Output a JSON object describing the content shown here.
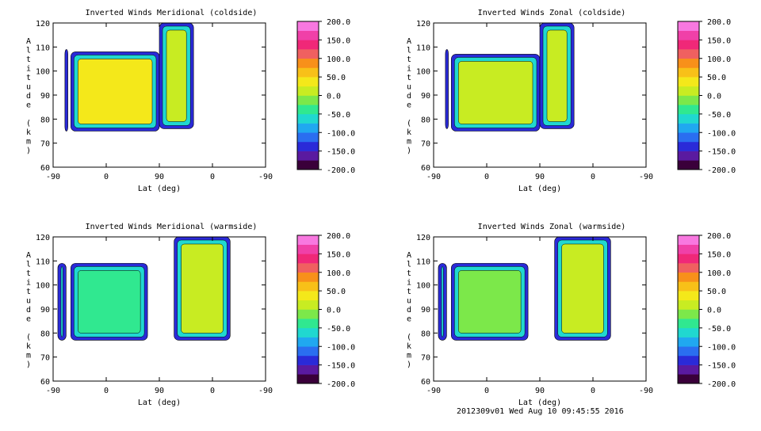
{
  "colors": {
    "colorbar": [
      "#3a003a",
      "#5a1aa0",
      "#2a2ad8",
      "#2a6ef0",
      "#20a8f0",
      "#20d8d0",
      "#30e890",
      "#7ce84a",
      "#c8ec22",
      "#f4e81a",
      "#f8c018",
      "#f8901a",
      "#f06060",
      "#f02878",
      "#f040a8",
      "#f878e0"
    ]
  },
  "footer": "2012309v01 Wed Aug 10 09:45:55 2016",
  "chart_data": [
    {
      "type": "heatmap",
      "title": "Inverted Winds Meridional (coldside)",
      "xlabel": "Lat (deg)",
      "ylabel": "Altitude (km)",
      "x_ticks": [
        "-90",
        "0",
        "90",
        "0",
        "-90"
      ],
      "y_ticks": [
        "60",
        "70",
        "80",
        "90",
        "100",
        "110",
        "120"
      ],
      "ylim": [
        60,
        120
      ],
      "colorbar_ticks": [
        "200.0",
        "150.0",
        "100.0",
        "50.0",
        "0.0",
        "-50.0",
        "-100.0",
        "-150.0",
        "-200.0"
      ],
      "colorbar_range": [
        -200,
        200
      ],
      "regions": [
        {
          "x": [
            -70,
            -65
          ],
          "y": [
            75,
            109
          ],
          "value": -130
        },
        {
          "x": [
            -60,
            90
          ],
          "y": [
            75,
            108
          ],
          "value": 25
        },
        {
          "x": [
            90,
            148
          ],
          "y": [
            76,
            120
          ],
          "value": 5
        }
      ]
    },
    {
      "type": "heatmap",
      "title": "Inverted Winds Zonal (coldside)",
      "xlabel": "Lat (deg)",
      "ylabel": "Altitude (km)",
      "x_ticks": [
        "-90",
        "0",
        "90",
        "0",
        "-90"
      ],
      "y_ticks": [
        "60",
        "70",
        "80",
        "90",
        "100",
        "110",
        "120"
      ],
      "ylim": [
        60,
        120
      ],
      "colorbar_ticks": [
        "200.0",
        "150.0",
        "100.0",
        "50.0",
        "0.0",
        "-50.0",
        "-100.0",
        "-150.0",
        "-200.0"
      ],
      "colorbar_range": [
        -200,
        200
      ],
      "regions": [
        {
          "x": [
            -70,
            -65
          ],
          "y": [
            76,
            109
          ],
          "value": -100
        },
        {
          "x": [
            -60,
            90
          ],
          "y": [
            75,
            107
          ],
          "value": 10
        },
        {
          "x": [
            90,
            148
          ],
          "y": [
            76,
            120
          ],
          "value": 15
        }
      ]
    },
    {
      "type": "heatmap",
      "title": "Inverted Winds Meridional (warmside)",
      "xlabel": "Lat (deg)",
      "ylabel": "Altitude (km)",
      "x_ticks": [
        "-90",
        "0",
        "90",
        "0",
        "-90"
      ],
      "y_ticks": [
        "60",
        "70",
        "80",
        "90",
        "100",
        "110",
        "120"
      ],
      "ylim": [
        60,
        120
      ],
      "colorbar_ticks": [
        "200.0",
        "150.0",
        "100.0",
        "50.0",
        "0.0",
        "-50.0",
        "-100.0",
        "-150.0",
        "-200.0"
      ],
      "colorbar_range": [
        -200,
        200
      ],
      "regions": [
        {
          "x": [
            -82,
            -68
          ],
          "y": [
            77,
            109
          ],
          "value": -120
        },
        {
          "x": [
            -60,
            70
          ],
          "y": [
            77,
            109
          ],
          "value": -40
        },
        {
          "x": [
            115,
            210
          ],
          "y": [
            77,
            120
          ],
          "value": 20
        }
      ]
    },
    {
      "type": "heatmap",
      "title": "Inverted Winds Zonal (warmside)",
      "xlabel": "Lat (deg)",
      "ylabel": "Altitude (km)",
      "x_ticks": [
        "-90",
        "0",
        "90",
        "0",
        "-90"
      ],
      "y_ticks": [
        "60",
        "70",
        "80",
        "90",
        "100",
        "110",
        "120"
      ],
      "ylim": [
        60,
        120
      ],
      "colorbar_ticks": [
        "200.0",
        "150.0",
        "100.0",
        "50.0",
        "0.0",
        "-50.0",
        "-100.0",
        "-150.0",
        "-200.0"
      ],
      "colorbar_range": [
        -200,
        200
      ],
      "regions": [
        {
          "x": [
            -82,
            -68
          ],
          "y": [
            77,
            109
          ],
          "value": -110
        },
        {
          "x": [
            -60,
            70
          ],
          "y": [
            77,
            109
          ],
          "value": -10
        },
        {
          "x": [
            115,
            210
          ],
          "y": [
            77,
            120
          ],
          "value": 0
        }
      ]
    }
  ]
}
